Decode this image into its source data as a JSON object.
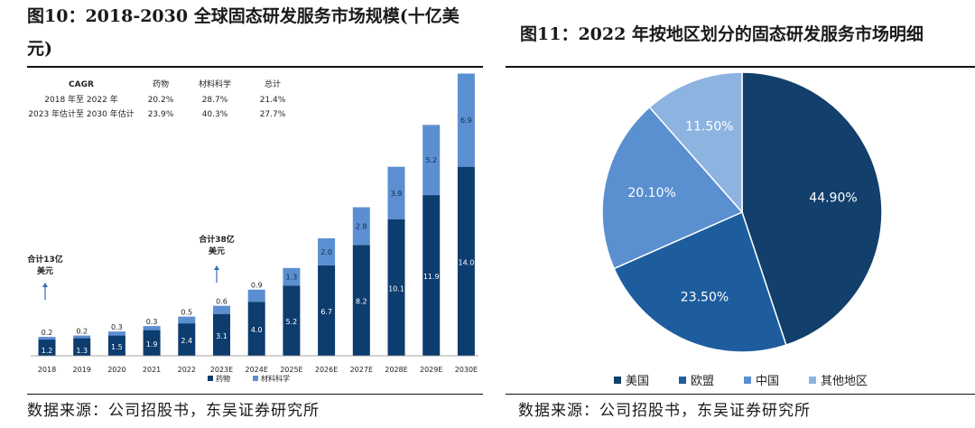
{
  "left": {
    "title": "图10：2018-2030 全球固态研发服务市场规模(十亿美元)",
    "title_line1": "图10：2018-2030 全球固态研发服务市场规模(十亿美",
    "title_line2": "元)",
    "source": "数据来源：公司招股书，东吴证券研究所"
  },
  "right": {
    "title": "图11：2022 年按地区划分的固态研发服务市场明细",
    "source": "数据来源：公司招股书，东吴证券研究所"
  },
  "cagr_table": {
    "headers": [
      "CAGR",
      "药物",
      "材料科学",
      "总计"
    ],
    "rows": [
      [
        "2018 年至 2022 年",
        "20.2%",
        "28.7%",
        "21.4%"
      ],
      [
        "2023 年估计至 2030 年估计",
        "23.9%",
        "40.3%",
        "27.7%"
      ]
    ]
  },
  "annotations": [
    {
      "line1": "合计13亿",
      "line2": "美元",
      "category": "2018"
    },
    {
      "line1": "合计38亿",
      "line2": "美元",
      "category": "2023E"
    }
  ],
  "chart_data": [
    {
      "type": "bar",
      "stacked": true,
      "categories": [
        "2018",
        "2019",
        "2020",
        "2021",
        "2022",
        "2023E",
        "2024E",
        "2025E",
        "2026E",
        "2027E",
        "2028E",
        "2029E",
        "2030E"
      ],
      "series": [
        {
          "name": "药物",
          "color": "#0d3c6e",
          "values": [
            1.2,
            1.3,
            1.5,
            1.9,
            2.4,
            3.1,
            4.0,
            5.2,
            6.7,
            8.2,
            10.1,
            11.9,
            14.0
          ]
        },
        {
          "name": "材料科学",
          "color": "#5b8fd1",
          "values": [
            0.2,
            0.2,
            0.3,
            0.3,
            0.5,
            0.6,
            0.9,
            1.3,
            2.0,
            2.8,
            3.9,
            5.2,
            6.9
          ]
        }
      ],
      "ylim": [
        0,
        21
      ],
      "legend": "bottom",
      "grid": false
    },
    {
      "type": "pie",
      "labels": [
        "美国",
        "欧盟",
        "中国",
        "其他地区"
      ],
      "values": [
        44.9,
        23.5,
        20.1,
        11.5
      ],
      "value_labels": [
        "44.90%",
        "23.50%",
        "20.10%",
        "11.50%"
      ],
      "colors": [
        "#123f6b",
        "#1d5d9e",
        "#5a8fd0",
        "#8db3e0"
      ],
      "legend": "bottom"
    }
  ]
}
